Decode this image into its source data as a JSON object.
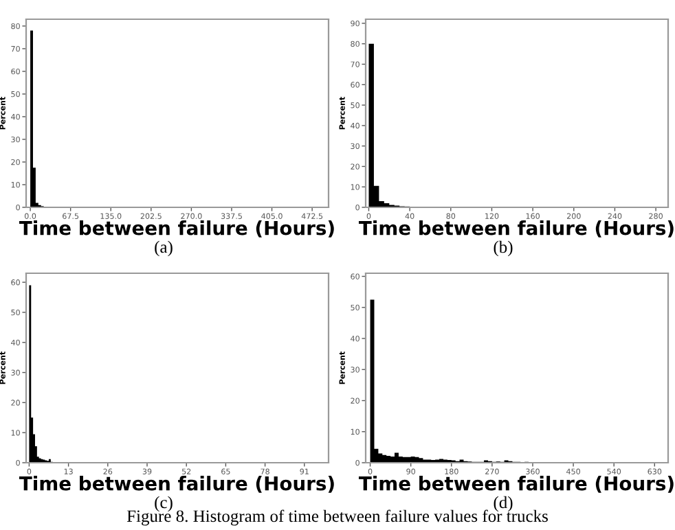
{
  "chart_data": [
    {
      "type": "histogram",
      "xlabel": "Time between failure (Hours)",
      "ylabel": "Percent",
      "color": "#000000",
      "bins": [
        0,
        4.5,
        9,
        13.5,
        18,
        22.5
      ],
      "values": [
        78,
        17.5,
        2,
        1,
        0.5
      ],
      "xlim": [
        -7,
        500
      ],
      "xticks": [
        {
          "value": 0,
          "label": "0.0"
        },
        67.5,
        {
          "value": 135,
          "label": "135.0"
        },
        202.5,
        {
          "value": 270,
          "label": "270.0"
        },
        337.5,
        {
          "value": 405,
          "label": "405.0"
        },
        472.5
      ],
      "ylim": [
        0,
        83
      ],
      "yticks": [
        0,
        10,
        20,
        30,
        40,
        50,
        60,
        70,
        80
      ],
      "annotations": [
        "(a)"
      ]
    },
    {
      "type": "histogram",
      "xlabel": "Time between failure (Hours)",
      "ylabel": "Percent",
      "color": "#000000",
      "bins": [
        0,
        5,
        10,
        15,
        20,
        25,
        30,
        35,
        40,
        45,
        50,
        55,
        60,
        65
      ],
      "values": [
        80,
        10.5,
        3,
        2,
        1.2,
        0.8,
        0.5,
        0.4,
        0.3,
        0.2,
        0.2,
        0.2,
        0.1
      ],
      "xlim": [
        -3,
        292
      ],
      "xticks": [
        0,
        40,
        80,
        120,
        160,
        200,
        240,
        280
      ],
      "ylim": [
        0,
        92
      ],
      "yticks": [
        0,
        10,
        20,
        30,
        40,
        50,
        60,
        70,
        80,
        90
      ],
      "annotations": [
        "(b)"
      ]
    },
    {
      "type": "histogram",
      "xlabel": "Time between failure (Hours)",
      "ylabel": "Percent",
      "color": "#000000",
      "bins": [
        0,
        0.65,
        1.3,
        1.95,
        2.6,
        3.25,
        3.9,
        4.55,
        5.2,
        5.85,
        6.5,
        7.15,
        7.8
      ],
      "values": [
        59,
        15,
        9.5,
        5.5,
        2,
        1.5,
        1.2,
        1,
        0.8,
        0.6,
        1.2,
        0.3
      ],
      "xlim": [
        -1,
        99
      ],
      "xticks": [
        0,
        13,
        26,
        39,
        52,
        65,
        78,
        91
      ],
      "ylim": [
        0,
        63
      ],
      "yticks": [
        0,
        10,
        20,
        30,
        40,
        50,
        60
      ],
      "annotations": [
        "(c)"
      ]
    },
    {
      "type": "histogram",
      "xlabel": "Time between failure (Hours)",
      "ylabel": "Percent",
      "color": "#000000",
      "bins": [
        0,
        9,
        18,
        27,
        36,
        45,
        54,
        63,
        72,
        81,
        90,
        99,
        108,
        117,
        126,
        135,
        144,
        153,
        162,
        171,
        180,
        189,
        198,
        207,
        216,
        225,
        234,
        243,
        252,
        261,
        270,
        279,
        288,
        297,
        306,
        315,
        324,
        333,
        342,
        351,
        360,
        369,
        378,
        387,
        396,
        405
      ],
      "values": [
        52.5,
        4.5,
        3,
        2.5,
        2.2,
        2,
        3.2,
        2,
        1.8,
        1.8,
        2,
        1.8,
        1.5,
        1,
        1,
        0.9,
        1,
        1.2,
        1,
        0.9,
        0.8,
        0.5,
        1,
        0.5,
        0.4,
        0.3,
        0.3,
        0.3,
        0.8,
        0.5,
        0.3,
        0.4,
        0.3,
        0.8,
        0.5,
        0.3,
        0.3,
        0.2,
        0.3,
        0.2,
        0.2,
        0.2,
        0.2,
        0.2,
        0.2
      ],
      "xlim": [
        -10,
        660
      ],
      "xticks": [
        0,
        90,
        180,
        270,
        360,
        450,
        540,
        630
      ],
      "ylim": [
        0,
        61
      ],
      "yticks": [
        0,
        10,
        20,
        30,
        40,
        50,
        60
      ],
      "annotations": [
        "(d)",
        "Figure 8. Histogram of time between failure values for trucks"
      ]
    }
  ]
}
